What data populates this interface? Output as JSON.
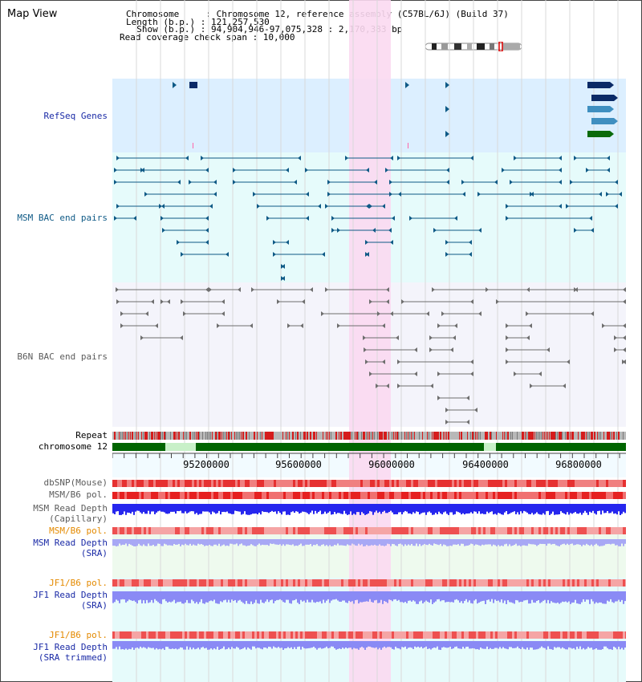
{
  "title": "Map View",
  "header": {
    "chromosome": "Chromosome     : Chromosome 12, reference assembly (C57BL/6J) (Build 37)",
    "length": "Length (b.p.) : 121,257,530",
    "show": "  Show (b.p.) : 94,904,946-97,075,328 : 2,170,383 bp",
    "coverage": "Read coverage check span : 10,000"
  },
  "tracks": {
    "refseq": "RefSeq Genes",
    "msm_bac": "MSM BAC end pairs",
    "b6n_bac": "B6N BAC end pairs",
    "repeat": "Repeat",
    "chromosome": "chromosome 12",
    "dbsnp": "dbSNP(Mouse)",
    "msm_b6_pol_1": "MSM/B6 pol.",
    "msm_depth_cap_1": "MSM Read Depth",
    "msm_depth_cap_2": "(Capillary)",
    "msm_b6_pol_2": "MSM/B6 pol.",
    "msm_depth_sra_1": "MSM Read Depth",
    "msm_depth_sra_2": "(SRA)",
    "jf1_pol_1": "JF1/B6 pol.",
    "jf1_depth_sra_1": "JF1 Read Depth",
    "jf1_depth_sra_2": "(SRA)",
    "jf1_pol_2": "JF1/B6 pol.",
    "jf1_depth_trim_1": "JF1 Read Depth",
    "jf1_depth_trim_2": "(SRA trimmed)"
  },
  "scale": {
    "labels": [
      "95200000",
      "95600000",
      "96000000",
      "96400000",
      "96800000"
    ]
  },
  "colors": {
    "refseq_bg": "#dcefff",
    "msm_bg": "#e6fbfb",
    "highlight": "#fbd9f1",
    "repeat": "#d51c1c",
    "chromosome": "#006400",
    "gap": "#c8f0c8",
    "depth": "#2626ee",
    "depth_light": "#8a8af5",
    "teal": "#0f5a86",
    "gray": "#6e6e6e"
  }
}
